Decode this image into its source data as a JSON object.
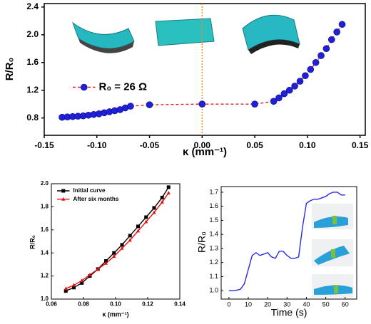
{
  "chart_data": [
    {
      "type": "line",
      "x": [
        -0.133,
        -0.128,
        -0.123,
        -0.118,
        -0.113,
        -0.108,
        -0.103,
        -0.098,
        -0.093,
        -0.088,
        -0.083,
        -0.078,
        -0.073,
        -0.068,
        -0.05,
        0,
        0.05,
        0.068,
        0.073,
        0.078,
        0.083,
        0.088,
        0.093,
        0.098,
        0.103,
        0.108,
        0.113,
        0.118,
        0.123,
        0.128,
        0.133
      ],
      "series": [
        {
          "name": "R₀ = 26 Ω",
          "color": "#2020d8",
          "line_color": "#e02020",
          "linestyle": "dashed",
          "marker": "circle",
          "values": [
            0.81,
            0.815,
            0.82,
            0.825,
            0.83,
            0.84,
            0.85,
            0.86,
            0.875,
            0.89,
            0.905,
            0.92,
            0.945,
            0.97,
            0.99,
            1.0,
            1.0,
            1.04,
            1.09,
            1.15,
            1.2,
            1.26,
            1.33,
            1.41,
            1.5,
            1.6,
            1.7,
            1.8,
            1.93,
            2.04,
            2.15
          ]
        }
      ],
      "xlabel": "κ (mm⁻¹)",
      "ylabel": "R/R₀",
      "xlim": [
        -0.15,
        0.155
      ],
      "xticks": [
        -0.15,
        {
          "value": -0.1,
          "label": "-0.10"
        },
        -0.05,
        {
          "value": 0,
          "label": "0.00"
        },
        0.05,
        {
          "value": 0.1,
          "label": "0.10"
        },
        0.15
      ],
      "ylim": [
        0.55,
        2.45
      ],
      "yticks": [
        0.8,
        1.2,
        1.6,
        {
          "value": 2,
          "label": "2.0"
        },
        2.4
      ],
      "vline": 0,
      "vline_color": "#f08a20",
      "legend": "left"
    },
    {
      "type": "line",
      "x": [
        0.069,
        0.074,
        0.079,
        0.084,
        0.089,
        0.094,
        0.099,
        0.104,
        0.109,
        0.114,
        0.119,
        0.124,
        0.129,
        0.133
      ],
      "series": [
        {
          "name": "Initial curve",
          "color": "#000000",
          "line_color": "#000000",
          "linestyle": "solid",
          "marker": "square",
          "values": [
            1.07,
            1.1,
            1.14,
            1.2,
            1.26,
            1.33,
            1.4,
            1.47,
            1.55,
            1.63,
            1.71,
            1.79,
            1.88,
            1.97
          ]
        },
        {
          "name": "After six months",
          "color": "#e01010",
          "line_color": "#e01010",
          "linestyle": "solid",
          "marker": "triangle",
          "values": [
            1.09,
            1.12,
            1.16,
            1.21,
            1.26,
            1.31,
            1.37,
            1.44,
            1.51,
            1.59,
            1.67,
            1.75,
            1.84,
            1.92
          ]
        }
      ],
      "xlabel": "κ (mm⁻¹)",
      "ylabel": "R/R₀",
      "xlim": [
        0.06,
        0.14
      ],
      "xticks": [
        0.06,
        0.08,
        {
          "value": 0.1,
          "label": "0.10"
        },
        0.12,
        0.14
      ],
      "ylim": [
        1.0,
        2.0
      ],
      "yticks": [
        {
          "value": 1,
          "label": "1.0"
        },
        1.2,
        1.4,
        1.6,
        1.8,
        {
          "value": 2,
          "label": "2.0"
        }
      ],
      "legend": "upper left"
    },
    {
      "type": "line",
      "x": [
        0,
        3,
        6,
        8,
        10,
        12,
        14,
        16,
        18,
        20,
        22,
        24,
        26,
        28,
        30,
        32,
        34,
        36,
        38,
        40,
        42,
        44,
        46,
        48,
        50,
        52,
        54,
        56,
        58,
        60
      ],
      "values": [
        1.0,
        1.0,
        1.01,
        1.05,
        1.15,
        1.25,
        1.27,
        1.25,
        1.26,
        1.27,
        1.24,
        1.23,
        1.28,
        1.28,
        1.25,
        1.23,
        1.23,
        1.24,
        1.45,
        1.62,
        1.64,
        1.65,
        1.65,
        1.66,
        1.67,
        1.69,
        1.7,
        1.7,
        1.68,
        1.68
      ],
      "color": "#2a2ae0",
      "xlabel": "Time (s)",
      "ylabel": "R/R₀",
      "xlim": [
        -4,
        66
      ],
      "xticks": [
        0,
        10,
        20,
        30,
        40,
        50,
        60
      ],
      "ylim": [
        0.94,
        1.74
      ],
      "yticks": [
        {
          "value": 1,
          "label": "1.0"
        },
        1.1,
        1.2,
        1.3,
        1.4,
        1.5,
        1.6,
        1.7
      ]
    }
  ]
}
